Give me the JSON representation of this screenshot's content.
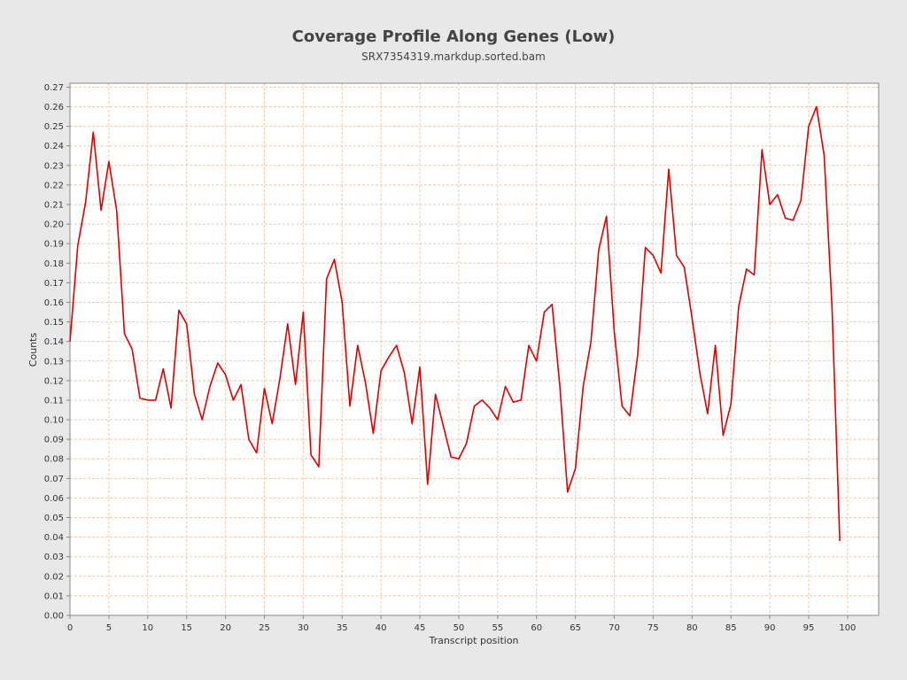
{
  "chart_data": {
    "type": "line",
    "title": "Coverage Profile Along Genes (Low)",
    "subtitle": "SRX7354319.markdup.sorted.bam",
    "xlabel": "Transcript position",
    "ylabel": "Counts",
    "xlim": [
      0,
      104
    ],
    "ylim": [
      0,
      0.272
    ],
    "x_ticks": [
      0,
      5,
      10,
      15,
      20,
      25,
      30,
      35,
      40,
      45,
      50,
      55,
      60,
      65,
      70,
      75,
      80,
      85,
      90,
      95,
      100
    ],
    "y_ticks": [
      0.0,
      0.01,
      0.02,
      0.03,
      0.04,
      0.05,
      0.06,
      0.07,
      0.08,
      0.09,
      0.1,
      0.11,
      0.12,
      0.13,
      0.14,
      0.15,
      0.16,
      0.17,
      0.18,
      0.19,
      0.2,
      0.21,
      0.22,
      0.23,
      0.24,
      0.25,
      0.26,
      0.27
    ],
    "grid": true,
    "colors": {
      "line": "#dd0000",
      "grid": "#f0c8a8",
      "plot_bg": "#ffffff",
      "page_bg": "#e8e8e8"
    },
    "series": [
      {
        "x": [
          0,
          1,
          2,
          3,
          4,
          5,
          6,
          7,
          8,
          9,
          10,
          11,
          12,
          13,
          14,
          15,
          16,
          17,
          18,
          19,
          20,
          21,
          22,
          23,
          24,
          25,
          26,
          27,
          28,
          29,
          30,
          31,
          32,
          33,
          34,
          35,
          36,
          37,
          38,
          39,
          40,
          41,
          42,
          43,
          44,
          45,
          46,
          47,
          48,
          49,
          50,
          51,
          52,
          53,
          54,
          55,
          56,
          57,
          58,
          59,
          60,
          61,
          62,
          63,
          64,
          65,
          66,
          67,
          68,
          69,
          70,
          71,
          72,
          73,
          74,
          75,
          76,
          77,
          78,
          79,
          80,
          81,
          82,
          83,
          84,
          85,
          86,
          87,
          88,
          89,
          90,
          91,
          92,
          93,
          94,
          95,
          96,
          97,
          98,
          99
        ],
        "values": [
          0.14,
          0.189,
          0.211,
          0.247,
          0.207,
          0.232,
          0.207,
          0.144,
          0.136,
          0.111,
          0.11,
          0.11,
          0.126,
          0.106,
          0.156,
          0.149,
          0.113,
          0.1,
          0.117,
          0.129,
          0.123,
          0.11,
          0.118,
          0.09,
          0.083,
          0.116,
          0.098,
          0.121,
          0.149,
          0.118,
          0.155,
          0.082,
          0.076,
          0.172,
          0.182,
          0.16,
          0.107,
          0.138,
          0.119,
          0.093,
          0.125,
          0.132,
          0.138,
          0.124,
          0.098,
          0.127,
          0.067,
          0.113,
          0.097,
          0.081,
          0.08,
          0.088,
          0.107,
          0.11,
          0.106,
          0.1,
          0.117,
          0.109,
          0.11,
          0.138,
          0.13,
          0.155,
          0.159,
          0.117,
          0.063,
          0.075,
          0.117,
          0.14,
          0.187,
          0.204,
          0.145,
          0.107,
          0.102,
          0.133,
          0.188,
          0.184,
          0.175,
          0.228,
          0.184,
          0.178,
          0.152,
          0.124,
          0.103,
          0.138,
          0.092,
          0.108,
          0.158,
          0.177,
          0.174,
          0.238,
          0.21,
          0.215,
          0.203,
          0.202,
          0.212,
          0.25,
          0.26,
          0.235,
          0.158,
          0.038
        ]
      }
    ]
  }
}
